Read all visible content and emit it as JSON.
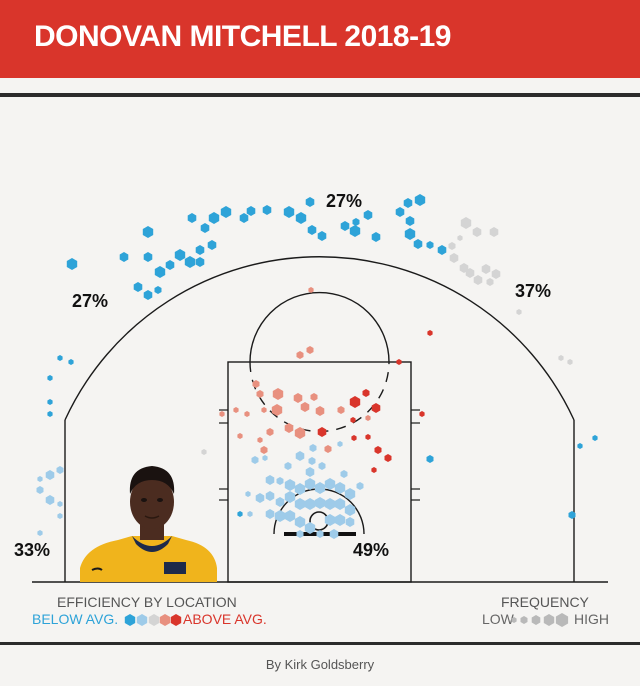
{
  "title": "DONOVAN MITCHELL 2018-19",
  "byline": "By Kirk Goldsberry",
  "colors": {
    "banner": "#d9352b",
    "below_avg": "#2ea3d8",
    "below_avg_light": "#9ecbe9",
    "above_avg": "#d9352b",
    "above_avg_light": "#e8907f",
    "neutral": "#d4d4d4"
  },
  "legend": {
    "efficiency_title": "EFFICIENCY BY LOCATION",
    "below_label": "BELOW AVG.",
    "above_label": "ABOVE AVG.",
    "frequency_title": "FREQUENCY",
    "low_label": "LOW",
    "high_label": "HIGH"
  },
  "chart_data": {
    "type": "hexbin-shot-chart",
    "title": "DONOVAN MITCHELL 2018-19",
    "zones": [
      {
        "name": "Top of key three",
        "label": "27%"
      },
      {
        "name": "Left wing three",
        "label": "27%"
      },
      {
        "name": "Right wing three",
        "label": "37%"
      },
      {
        "name": "Left corner three",
        "label": "33%"
      },
      {
        "name": "Restricted area",
        "label": "49%"
      }
    ],
    "efficiency_scale": [
      "below avg. (dark)",
      "below avg.",
      "neutral",
      "above avg.",
      "above avg. (dark)"
    ],
    "frequency_scale": [
      "low",
      "high"
    ]
  }
}
